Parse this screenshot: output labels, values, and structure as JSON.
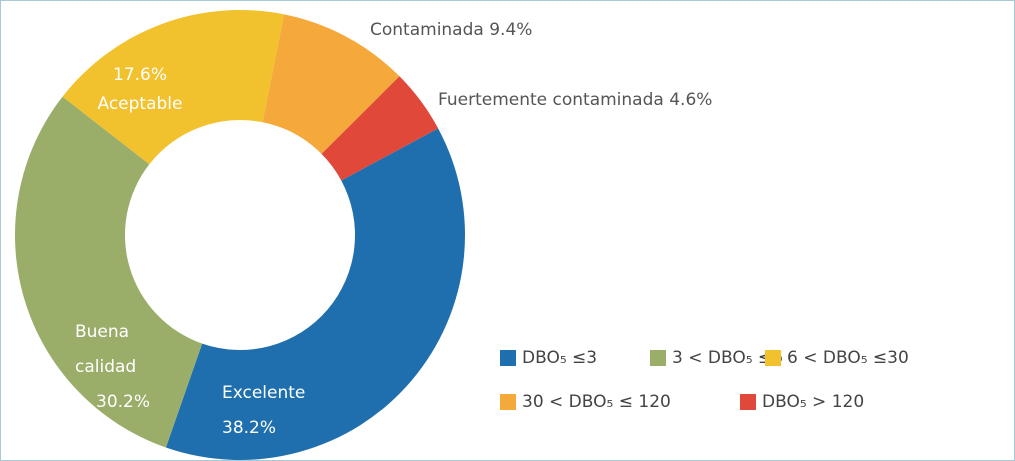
{
  "chart_data": {
    "type": "donut",
    "labels": [
      "Excelente",
      "Buena calidad",
      "Aceptable",
      "Contaminada",
      "Fuertemente contaminada"
    ],
    "values": [
      38.2,
      30.2,
      17.6,
      9.4,
      4.6
    ],
    "value_labels": [
      "38.2%",
      "30.2%",
      "17.6%",
      "9.4%",
      "4.6%"
    ],
    "colors": [
      "#1f6fae",
      "#9aae6a",
      "#f2c12e",
      "#f5a93a",
      "#e0483a"
    ],
    "legend": [
      "DBO₅ ≤3",
      "3 < DBO₅ ≤6",
      "6 < DBO₅ ≤30",
      "30 < DBO₅ ≤ 120",
      "DBO₅ > 120"
    ]
  }
}
